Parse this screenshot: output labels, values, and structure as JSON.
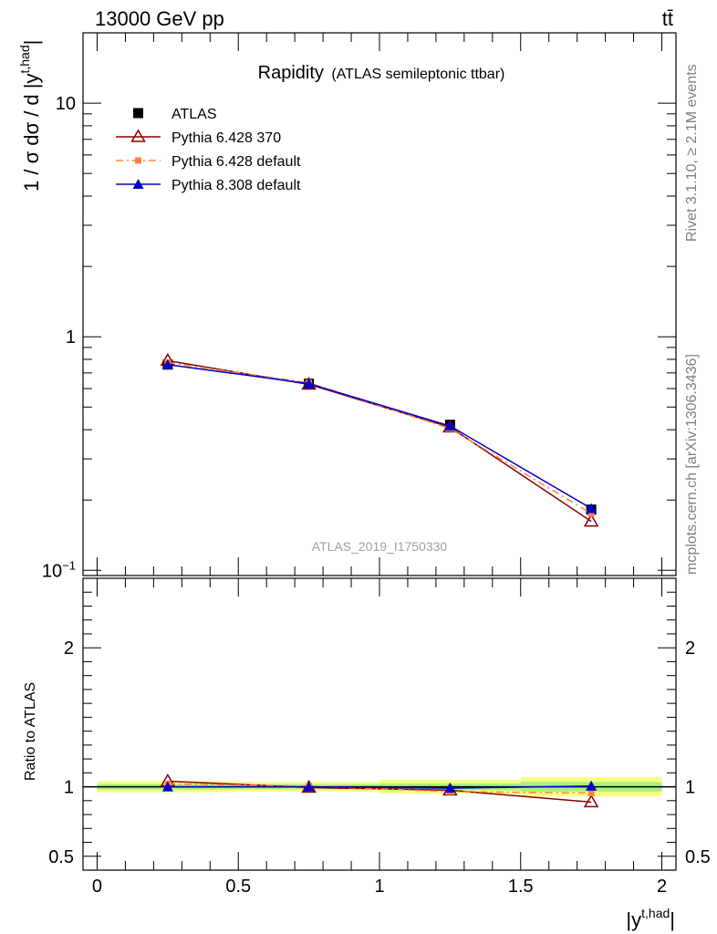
{
  "header": {
    "energy_label": "13000 GeV pp",
    "process_label": "tt̄"
  },
  "side_labels": {
    "rivet": "Rivet 3.1.10, ≥ 2.1M events",
    "mcplots": "mcplots.cern.ch [arXiv:1306.3436]"
  },
  "chart_data": [
    {
      "type": "line",
      "title": "Rapidity",
      "subtitle": "(ATLAS semileptonic ttbar)",
      "analysis_label": "ATLAS_2019_I1750330",
      "ylabel": "1 / σ dσ / d |y^{t,had}|",
      "ylabel_main": "1 / σ dσ / d |y",
      "ylabel_sup": "t,had",
      "ylabel_end": "|",
      "yscale": "log",
      "xlim": [
        -0.05,
        2.05
      ],
      "ylim": [
        0.095,
        20
      ],
      "y_ticks": [
        {
          "value": 0.1,
          "label": "10",
          "sup": "−1"
        },
        {
          "value": 1,
          "label": "1",
          "sup": ""
        },
        {
          "value": 10,
          "label": "10",
          "sup": ""
        }
      ],
      "legend_position": "top-left",
      "series": [
        {
          "name": "ATLAS",
          "color": "#000000",
          "marker": "square",
          "x": [
            0.25,
            0.75,
            1.25,
            1.75
          ],
          "y": [
            0.76,
            0.63,
            0.42,
            0.182
          ]
        },
        {
          "name": "Pythia 6.428 370",
          "color": "#8b0000",
          "marker": "open-triangle",
          "x": [
            0.25,
            0.75,
            1.25,
            1.75
          ],
          "y": [
            0.79,
            0.625,
            0.41,
            0.162
          ]
        },
        {
          "name": "Pythia 6.428 default",
          "color": "#ff8040",
          "marker": "small-square",
          "dash": "dash-dot",
          "x": [
            0.25,
            0.75,
            1.25,
            1.75
          ],
          "y": [
            0.775,
            0.635,
            0.405,
            0.175
          ]
        },
        {
          "name": "Pythia 8.308 default",
          "color": "#0000cc",
          "marker": "filled-triangle",
          "x": [
            0.25,
            0.75,
            1.25,
            1.75
          ],
          "y": [
            0.76,
            0.63,
            0.415,
            0.184
          ]
        }
      ]
    },
    {
      "type": "line",
      "ylabel": "Ratio to ATLAS",
      "xlabel": "|y^{t,had}|",
      "xlabel_main": "|y",
      "xlabel_sup": "t,had",
      "xlabel_end": "|",
      "xlim": [
        -0.05,
        2.05
      ],
      "ylim": [
        0.4,
        2.5
      ],
      "x_ticks": [
        {
          "value": 0,
          "label": "0"
        },
        {
          "value": 0.5,
          "label": "0.5"
        },
        {
          "value": 1,
          "label": "1"
        },
        {
          "value": 1.5,
          "label": "1.5"
        },
        {
          "value": 2,
          "label": "2"
        }
      ],
      "y_ticks": [
        {
          "value": 0.5,
          "label": "0.5"
        },
        {
          "value": 1,
          "label": "1"
        },
        {
          "value": 2,
          "label": "2"
        }
      ],
      "uncertainty_bands": [
        {
          "x_range": [
            0,
            0.5
          ],
          "yellow": [
            0.96,
            1.04
          ],
          "green": [
            0.98,
            1.02
          ]
        },
        {
          "x_range": [
            0.5,
            1.0
          ],
          "yellow": [
            0.965,
            1.035
          ],
          "green": [
            0.982,
            1.018
          ]
        },
        {
          "x_range": [
            1.0,
            1.5
          ],
          "yellow": [
            0.95,
            1.05
          ],
          "green": [
            0.975,
            1.025
          ]
        },
        {
          "x_range": [
            1.5,
            2.0
          ],
          "yellow": [
            0.93,
            1.07
          ],
          "green": [
            0.965,
            1.035
          ]
        }
      ],
      "series": [
        {
          "name": "Pythia 6.428 370",
          "color": "#8b0000",
          "marker": "open-triangle",
          "x": [
            0.25,
            0.75,
            1.25,
            1.75
          ],
          "y": [
            1.04,
            0.995,
            0.975,
            0.89
          ]
        },
        {
          "name": "Pythia 6.428 default",
          "color": "#ff8040",
          "marker": "small-square",
          "dash": "dash-dot",
          "x": [
            0.25,
            0.75,
            1.25,
            1.75
          ],
          "y": [
            1.02,
            1.005,
            0.965,
            0.955
          ]
        },
        {
          "name": "Pythia 8.308 default",
          "color": "#0000cc",
          "marker": "filled-triangle",
          "x": [
            0.25,
            0.75,
            1.25,
            1.75
          ],
          "y": [
            1.0,
            1.0,
            0.99,
            1.005
          ]
        }
      ]
    }
  ]
}
